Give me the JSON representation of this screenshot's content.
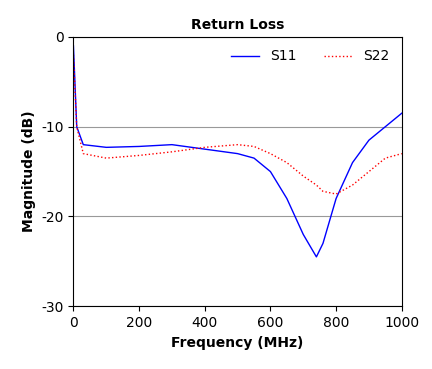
{
  "chart_data": {
    "type": "line",
    "title": "Return Loss",
    "x_label": "Frequency (MHz)",
    "y_label": "Magnitude (dB)",
    "x": [
      0,
      10,
      30,
      100,
      200,
      300,
      400,
      500,
      550,
      600,
      650,
      700,
      740,
      760,
      800,
      850,
      900,
      950,
      1000
    ],
    "series": [
      {
        "name": "S11",
        "color": "#0000ff",
        "line_style": "solid",
        "values": [
          -1,
          -10,
          -12,
          -12.3,
          -12.2,
          -12,
          -12.5,
          -13,
          -13.5,
          -15,
          -18,
          -22,
          -24.5,
          -23,
          -18,
          -14,
          -11.5,
          -10,
          -8.5
        ]
      },
      {
        "name": "S22",
        "color": "#ff0000",
        "line_style": "dotted",
        "values": [
          -2,
          -10,
          -13,
          -13.5,
          -13.2,
          -12.8,
          -12.3,
          -12,
          -12.2,
          -13,
          -14,
          -15.5,
          -16.5,
          -17.2,
          -17.5,
          -16.5,
          -15,
          -13.5,
          -13
        ]
      }
    ],
    "xlim": [
      0,
      1000
    ],
    "xticks": [
      0,
      200,
      400,
      600,
      800,
      1000
    ],
    "ylim": [
      -30,
      0
    ],
    "yticks": [
      -30,
      -20,
      -10,
      0
    ],
    "grid": true,
    "legend": "upper right"
  }
}
